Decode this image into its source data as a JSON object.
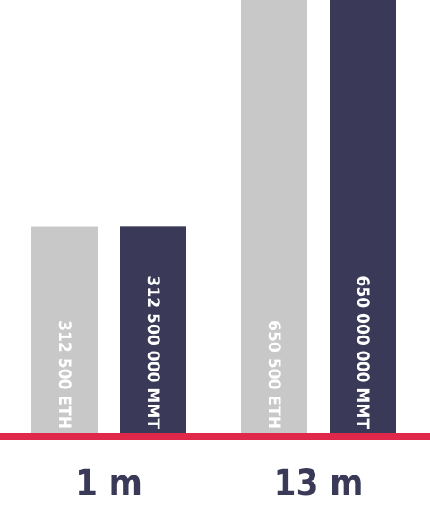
{
  "chart_data": {
    "type": "bar",
    "categories": [
      "1 m",
      "13 m"
    ],
    "series": [
      {
        "color": "#c8c8c8",
        "values": [
          312500,
          650500
        ],
        "labels": [
          "312 500 ETH",
          "650 500 ETH"
        ]
      },
      {
        "color": "#3a3a58",
        "values": [
          312500000,
          650000000
        ],
        "labels": [
          "312 500 000 MMT",
          "650 000 000 MMT"
        ]
      }
    ],
    "baseline_color": "#e0294a",
    "category_label_color": "#3a3a58",
    "value_label_color": "#ffffff",
    "grid": false,
    "legend": "none"
  }
}
